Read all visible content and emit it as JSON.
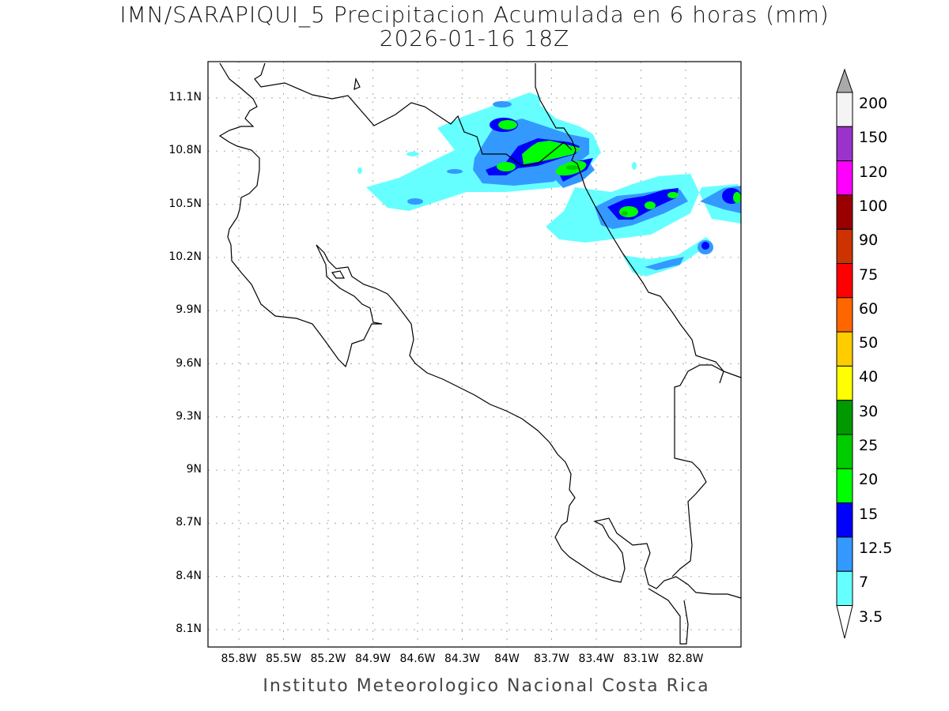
{
  "title": "IMN/SARAPIQUI_5 Precipitacion Acumulada en 6 horas (mm)",
  "subtitle": "2026-01-16 18Z",
  "footer": "Instituto Meteorologico Nacional Costa Rica",
  "map": {
    "lat_ticks": [
      "11.1N",
      "10.8N",
      "10.5N",
      "10.2N",
      "9.9N",
      "9.6N",
      "9.3N",
      "9N",
      "8.7N",
      "8.4N",
      "8.1N"
    ],
    "lon_ticks": [
      "85.8W",
      "85.5W",
      "85.2W",
      "84.9W",
      "84.6W",
      "84.3W",
      "84W",
      "83.7W",
      "83.4W",
      "83.1W",
      "82.8W"
    ],
    "grid": true
  },
  "colorbar": {
    "labels": [
      "200",
      "150",
      "120",
      "100",
      "90",
      "75",
      "60",
      "50",
      "40",
      "30",
      "25",
      "20",
      "15",
      "12.5",
      "7",
      "3.5"
    ],
    "colors_top_to_bottom": [
      "#f4f4f4",
      "#9933cc",
      "#ff00ff",
      "#990000",
      "#cc3300",
      "#ff0000",
      "#ff6600",
      "#ffcc00",
      "#ffff00",
      "#009900",
      "#00cc00",
      "#00ff00",
      "#0000ff",
      "#3399ff",
      "#66ffff"
    ],
    "over_color": "#aaaaaa",
    "under_color": "#ffffff"
  }
}
